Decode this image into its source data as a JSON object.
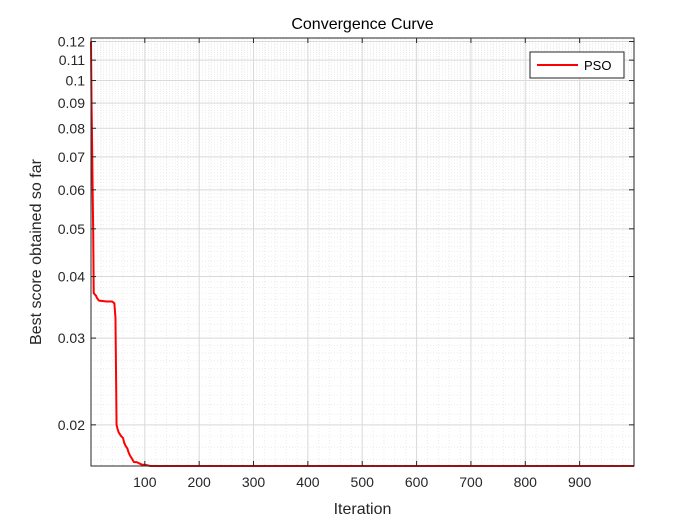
{
  "colors": {
    "background": "#ffffff",
    "axes_background": "#ffffff",
    "series": "#ff0000",
    "grid_major": "#d9d9d9",
    "grid_minor": "#ececec",
    "axis": "#262626"
  },
  "chart_data": {
    "type": "line",
    "title": "Convergence Curve",
    "xlabel": "Iteration",
    "ylabel": "Best score obtained so far",
    "xlim": [
      1,
      1000
    ],
    "ylim": [
      0.0165,
      0.122
    ],
    "yscale": "log",
    "grid": true,
    "minor_grid": true,
    "legend": {
      "placement": "top-right",
      "entries": [
        "PSO"
      ]
    },
    "x_ticks": [
      100,
      200,
      300,
      400,
      500,
      600,
      700,
      800,
      900
    ],
    "x_tick_labels": [
      "100",
      "200",
      "300",
      "400",
      "500",
      "600",
      "700",
      "800",
      "900"
    ],
    "y_ticks": [
      0.02,
      0.03,
      0.04,
      0.05,
      0.06,
      0.07,
      0.08,
      0.09,
      0.1,
      0.11,
      0.12
    ],
    "y_tick_labels": [
      "0.02",
      "0.03",
      "0.04",
      "0.05",
      "0.06",
      "0.07",
      "0.08",
      "0.09",
      "0.1",
      "0.11",
      "0.12"
    ],
    "series": [
      {
        "name": "PSO",
        "x": [
          1,
          2,
          3,
          4,
          5,
          6,
          8,
          10,
          12,
          15,
          18,
          20,
          30,
          40,
          44,
          46,
          47,
          48,
          50,
          52,
          56,
          60,
          62,
          65,
          68,
          70,
          73,
          76,
          80,
          85,
          90,
          95,
          100,
          110,
          1000
        ],
        "y": [
          0.12,
          0.09,
          0.075,
          0.06,
          0.05,
          0.037,
          0.0368,
          0.0366,
          0.0362,
          0.0358,
          0.0357,
          0.0357,
          0.0356,
          0.0356,
          0.0353,
          0.033,
          0.026,
          0.02,
          0.0196,
          0.0193,
          0.019,
          0.0188,
          0.0184,
          0.0181,
          0.0179,
          0.0176,
          0.0173,
          0.0171,
          0.0168,
          0.0168,
          0.0167,
          0.0166,
          0.0166,
          0.0165,
          0.0165
        ]
      }
    ]
  }
}
